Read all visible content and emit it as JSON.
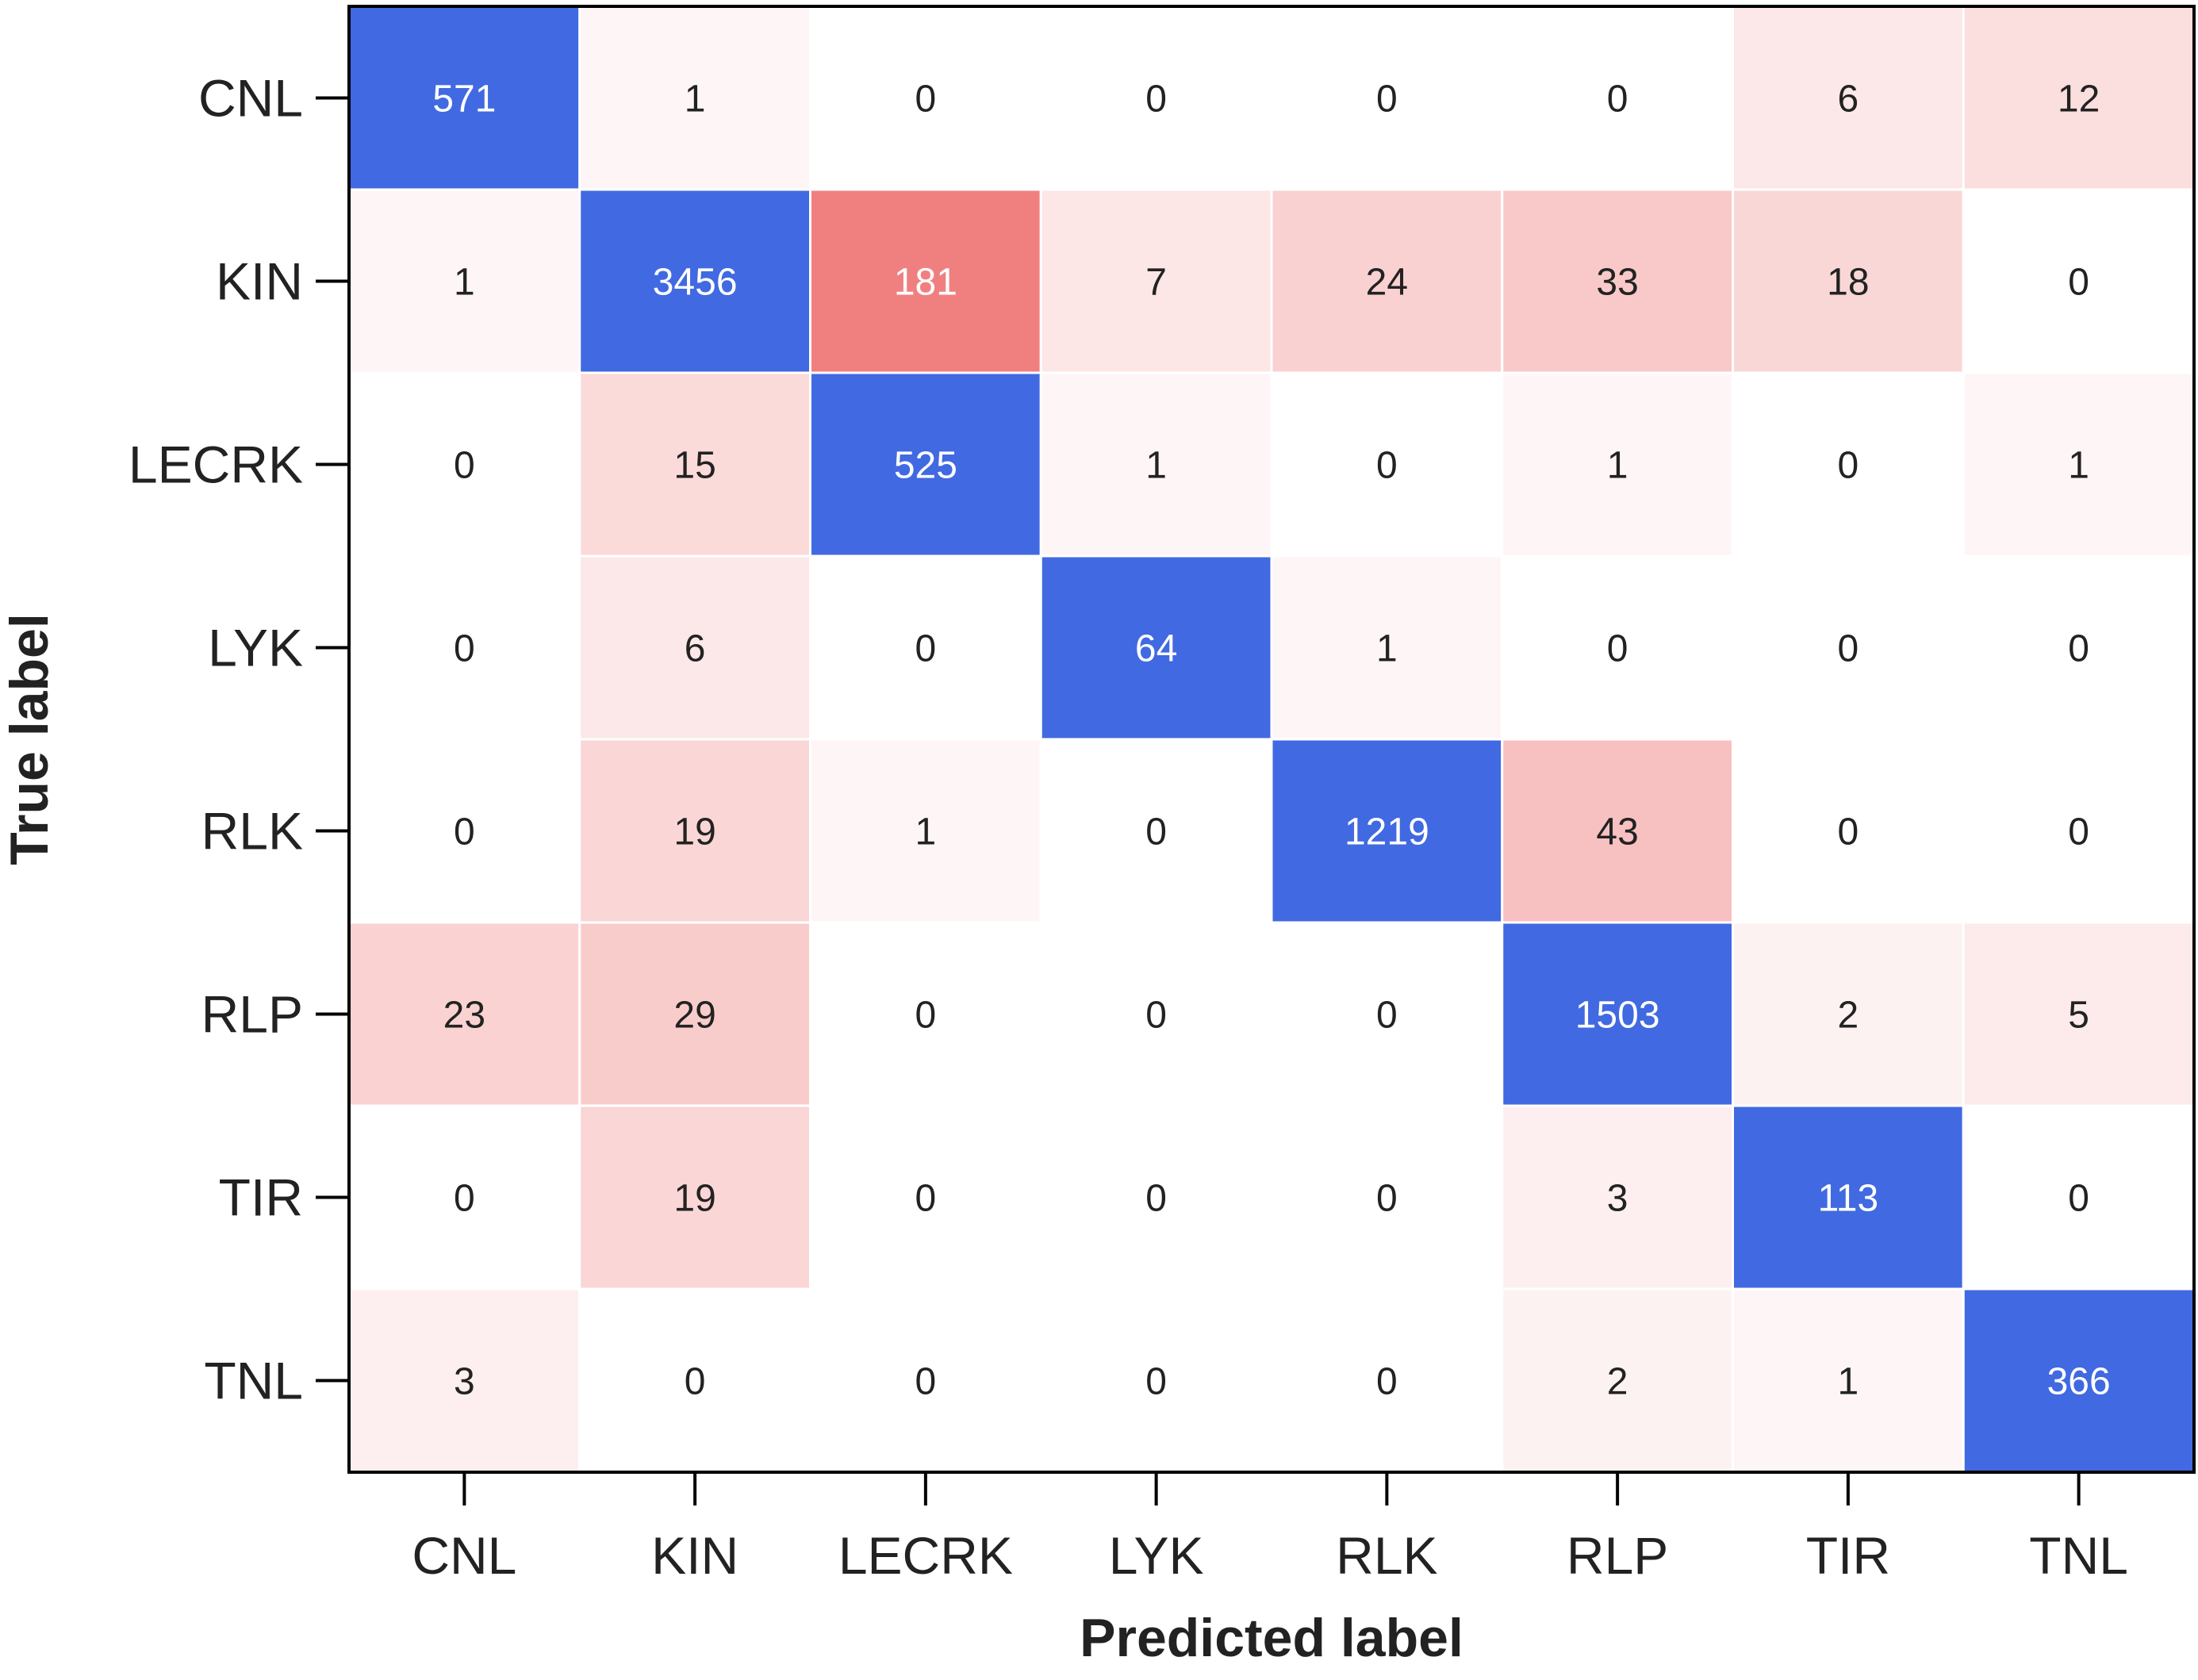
{
  "chart_data": {
    "type": "heatmap",
    "title": "",
    "xlabel": "Predicted label",
    "ylabel": "True label",
    "x_categories": [
      "CNL",
      "KIN",
      "LECRK",
      "LYK",
      "RLK",
      "RLP",
      "TIR",
      "TNL"
    ],
    "y_categories": [
      "CNL",
      "KIN",
      "LECRK",
      "LYK",
      "RLK",
      "RLP",
      "TIR",
      "TNL"
    ],
    "values": [
      [
        571,
        1,
        0,
        0,
        0,
        0,
        6,
        12
      ],
      [
        1,
        3456,
        181,
        7,
        24,
        33,
        18,
        0
      ],
      [
        0,
        15,
        525,
        1,
        0,
        1,
        0,
        1
      ],
      [
        0,
        6,
        0,
        64,
        1,
        0,
        0,
        0
      ],
      [
        0,
        19,
        1,
        0,
        1219,
        43,
        0,
        0
      ],
      [
        23,
        29,
        0,
        0,
        0,
        1503,
        2,
        5
      ],
      [
        0,
        19,
        0,
        0,
        0,
        3,
        113,
        0
      ],
      [
        3,
        0,
        0,
        0,
        0,
        2,
        1,
        366
      ]
    ],
    "diagonal_color": "#4169e1",
    "offdiag_min_color": "#ffffff",
    "offdiag_max_color": "#f08080",
    "offdiag_max_value": 181,
    "text_color_diagonal": "#ffffff",
    "text_color_offdiag": "#222222",
    "text_color_strong": "#ffffff",
    "frame_color": "#000000",
    "grid_color": "#ffffff"
  }
}
